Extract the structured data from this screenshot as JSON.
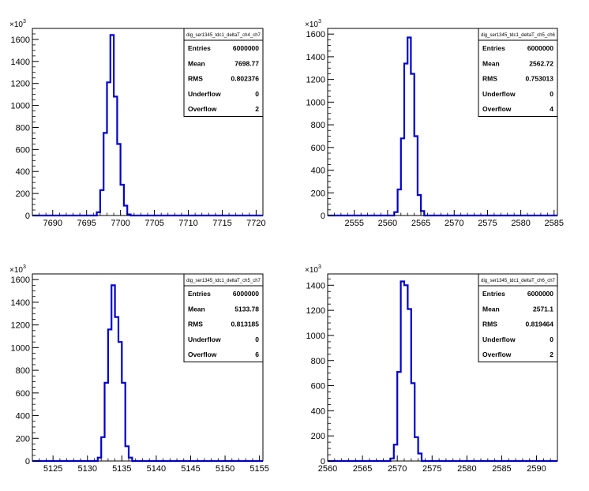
{
  "chart_data": [
    {
      "type": "bar",
      "title": "dig_ser1345_tdc1_deltaT_ch4_ch7",
      "xlim": [
        7687,
        7721
      ],
      "ylim": [
        0,
        1700
      ],
      "y_exponent_label": "10",
      "y_exponent_power": "3",
      "x_ticks": [
        7690,
        7695,
        7700,
        7705,
        7710,
        7715,
        7720
      ],
      "y_ticks": [
        0,
        200,
        400,
        600,
        800,
        1000,
        1200,
        1400,
        1600
      ],
      "bin_width": 0.5,
      "bins": [
        [
          7696.5,
          30
        ],
        [
          7697,
          230
        ],
        [
          7697.5,
          750
        ],
        [
          7698,
          1210
        ],
        [
          7698.5,
          1640
        ],
        [
          7699,
          1080
        ],
        [
          7699.5,
          650
        ],
        [
          7700,
          280
        ],
        [
          7700.5,
          90
        ],
        [
          7701,
          10
        ]
      ],
      "stats": [
        {
          "key": "Entries",
          "value": "6000000"
        },
        {
          "key": "Mean",
          "value": "7698.77"
        },
        {
          "key": "RMS",
          "value": "0.802376"
        },
        {
          "key": "Underflow",
          "value": "0"
        },
        {
          "key": "Overflow",
          "value": "2"
        }
      ]
    },
    {
      "type": "bar",
      "title": "dig_ser1345_tdc1_deltaT_ch5_ch6",
      "xlim": [
        2551,
        2585.5
      ],
      "ylim": [
        0,
        1650
      ],
      "y_exponent_label": "10",
      "y_exponent_power": "3",
      "x_ticks": [
        2555,
        2560,
        2565,
        2570,
        2575,
        2580,
        2585
      ],
      "y_ticks": [
        0,
        200,
        400,
        600,
        800,
        1000,
        1200,
        1400,
        1600
      ],
      "bin_width": 0.5,
      "bins": [
        [
          2561,
          30
        ],
        [
          2561.5,
          230
        ],
        [
          2562,
          680
        ],
        [
          2562.5,
          1340
        ],
        [
          2563,
          1570
        ],
        [
          2563.5,
          1250
        ],
        [
          2564,
          700
        ],
        [
          2564.5,
          180
        ],
        [
          2565,
          40
        ]
      ],
      "stats": [
        {
          "key": "Entries",
          "value": "6000000"
        },
        {
          "key": "Mean",
          "value": "2562.72"
        },
        {
          "key": "RMS",
          "value": "0.753013"
        },
        {
          "key": "Underflow",
          "value": "0"
        },
        {
          "key": "Overflow",
          "value": "4"
        }
      ]
    },
    {
      "type": "bar",
      "title": "dig_ser1345_tdc1_deltaT_ch5_ch7",
      "xlim": [
        5122,
        5155.5
      ],
      "ylim": [
        0,
        1650
      ],
      "y_exponent_label": "10",
      "y_exponent_power": "3",
      "x_ticks": [
        5125,
        5130,
        5135,
        5140,
        5145,
        5150,
        5155
      ],
      "y_ticks": [
        0,
        200,
        400,
        600,
        800,
        1000,
        1200,
        1400,
        1600
      ],
      "bin_width": 0.5,
      "bins": [
        [
          5131.5,
          30
        ],
        [
          5132,
          210
        ],
        [
          5132.5,
          690
        ],
        [
          5133,
          1160
        ],
        [
          5133.5,
          1550
        ],
        [
          5134,
          1270
        ],
        [
          5134.5,
          1050
        ],
        [
          5135,
          690
        ],
        [
          5135.5,
          130
        ],
        [
          5136,
          30
        ]
      ],
      "stats": [
        {
          "key": "Entries",
          "value": "6000000"
        },
        {
          "key": "Mean",
          "value": "5133.78"
        },
        {
          "key": "RMS",
          "value": "0.813185"
        },
        {
          "key": "Underflow",
          "value": "0"
        },
        {
          "key": "Overflow",
          "value": "6"
        }
      ]
    },
    {
      "type": "bar",
      "title": "dig_ser1345_tdc1_deltaT_ch6_ch7",
      "xlim": [
        2560,
        2593
      ],
      "ylim": [
        0,
        1490
      ],
      "y_exponent_label": "10",
      "y_exponent_power": "3",
      "x_ticks": [
        2560,
        2565,
        2570,
        2575,
        2580,
        2585,
        2590
      ],
      "y_ticks": [
        0,
        200,
        400,
        600,
        800,
        1000,
        1200,
        1400
      ],
      "bin_width": 0.5,
      "bins": [
        [
          2569,
          20
        ],
        [
          2569.5,
          130
        ],
        [
          2570,
          710
        ],
        [
          2570.5,
          1430
        ],
        [
          2571,
          1400
        ],
        [
          2571.5,
          1210
        ],
        [
          2572,
          620
        ],
        [
          2572.5,
          190
        ],
        [
          2573,
          60
        ]
      ],
      "stats": [
        {
          "key": "Entries",
          "value": "6000000"
        },
        {
          "key": "Mean",
          "value": "2571.1"
        },
        {
          "key": "RMS",
          "value": "0.819464"
        },
        {
          "key": "Underflow",
          "value": "0"
        },
        {
          "key": "Overflow",
          "value": "2"
        }
      ]
    }
  ],
  "colors": {
    "histogram_line": "#0000cc",
    "axes": "#000000",
    "background": "#ffffff"
  }
}
